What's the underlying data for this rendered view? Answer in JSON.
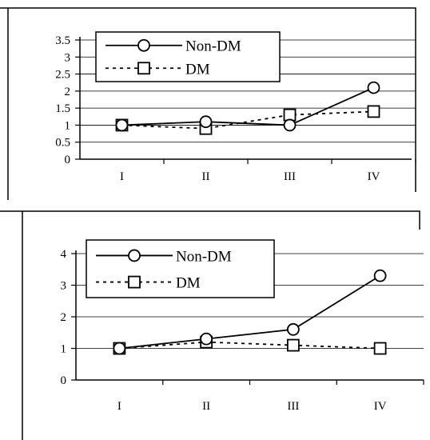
{
  "chart_data": [
    {
      "type": "line",
      "title": "",
      "xlabel": "",
      "ylabel": "",
      "categories": [
        "I",
        "II",
        "III",
        "IV"
      ],
      "yticks": [
        "0",
        "0.5",
        "1",
        "1.5",
        "2",
        "2.5",
        "3",
        "3.5"
      ],
      "ylim": [
        0,
        3.5
      ],
      "grid": "horizontal",
      "legend_position": "top-left",
      "series": [
        {
          "name": "Non-DM",
          "values": [
            1.0,
            1.1,
            1.0,
            2.1
          ],
          "line_style": "solid",
          "marker": "circle"
        },
        {
          "name": "DM",
          "values": [
            1.0,
            0.9,
            1.3,
            1.4
          ],
          "line_style": "dotted",
          "marker": "square"
        }
      ]
    },
    {
      "type": "line",
      "title": "",
      "xlabel": "",
      "ylabel": "",
      "categories": [
        "I",
        "II",
        "III",
        "IV"
      ],
      "yticks": [
        "0",
        "1",
        "2",
        "3",
        "4"
      ],
      "ylim": [
        0,
        4
      ],
      "grid": "horizontal",
      "legend_position": "top-left",
      "series": [
        {
          "name": "Non-DM",
          "values": [
            1.0,
            1.3,
            1.6,
            3.3
          ],
          "line_style": "solid",
          "marker": "circle"
        },
        {
          "name": "DM",
          "values": [
            1.0,
            1.2,
            1.1,
            1.0
          ],
          "line_style": "dotted",
          "marker": "square"
        }
      ]
    }
  ]
}
